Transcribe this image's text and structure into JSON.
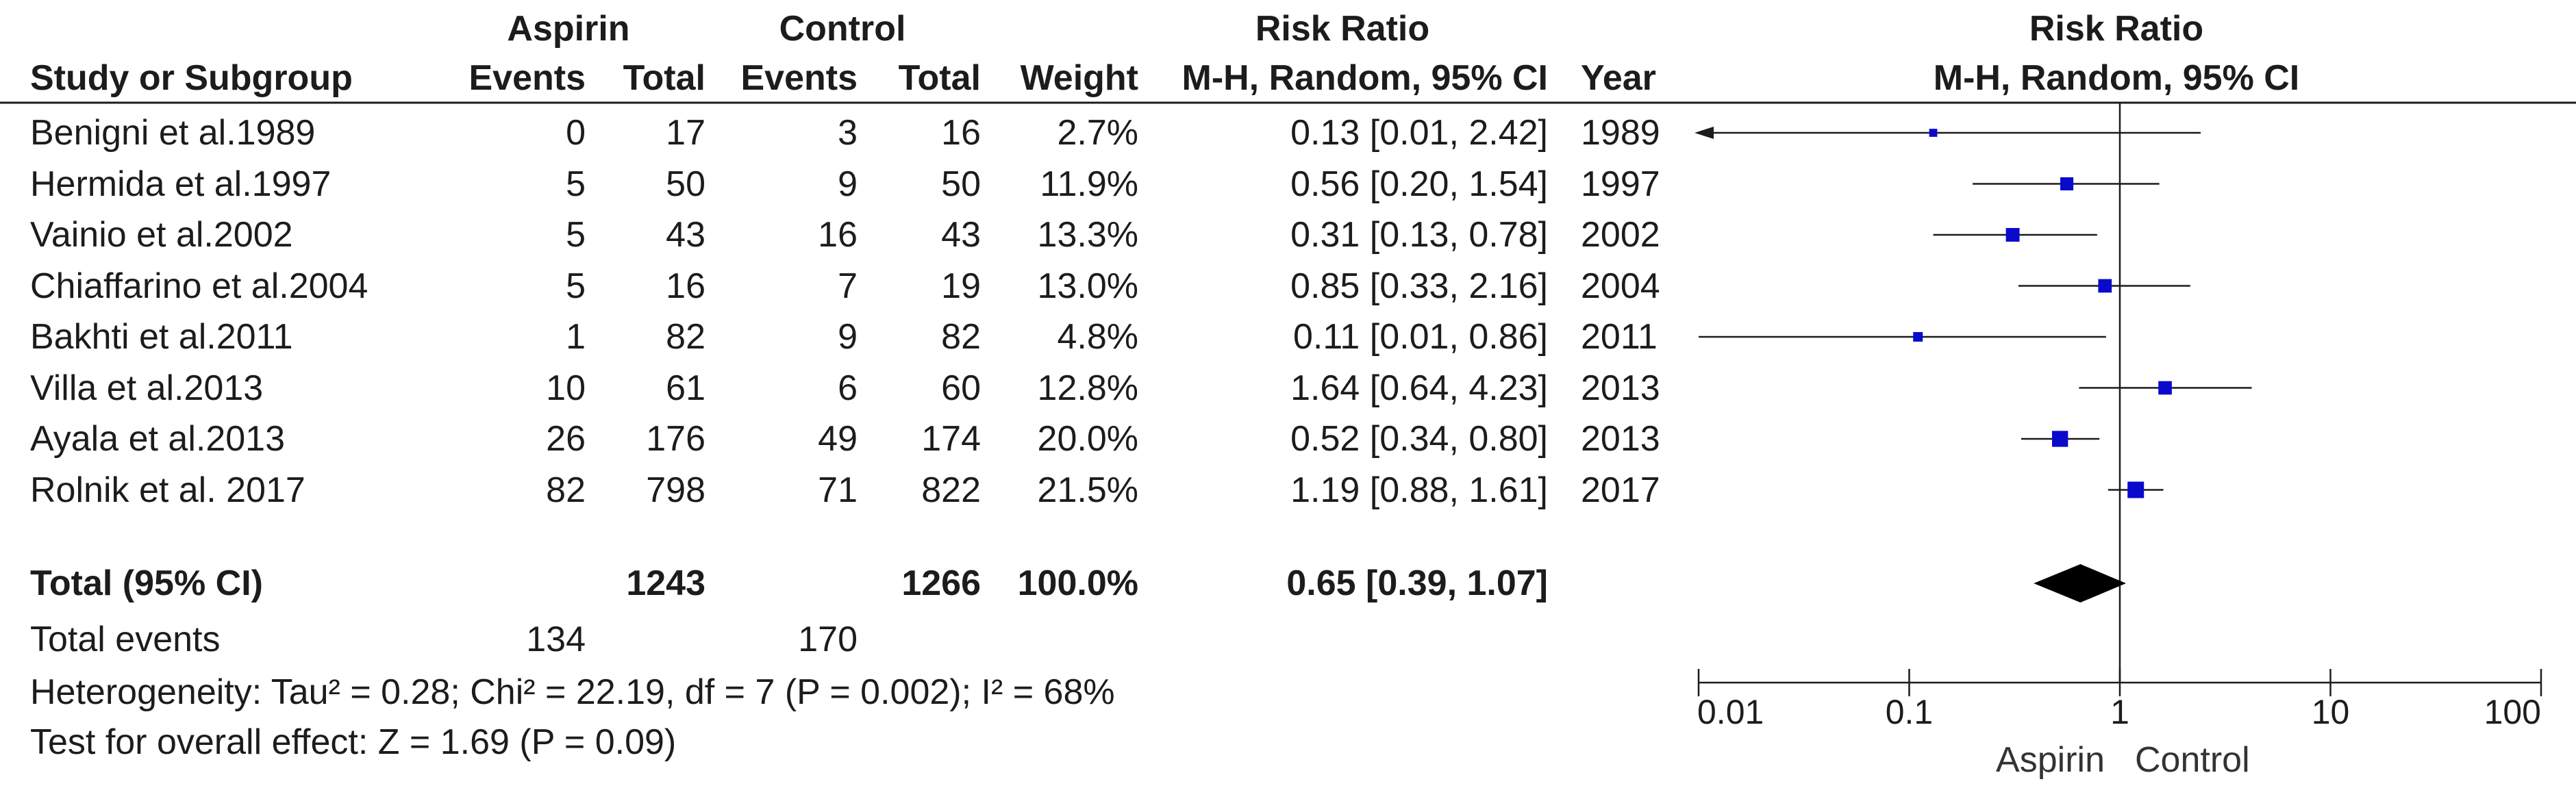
{
  "header": {
    "aspirin_group": "Aspirin",
    "control_group": "Control",
    "risk_ratio_table": "Risk Ratio",
    "risk_ratio_plot": "Risk Ratio",
    "col_study": "Study or Subgroup",
    "col_events_a": "Events",
    "col_total_a": "Total",
    "col_events_c": "Events",
    "col_total_c": "Total",
    "col_weight": "Weight",
    "col_method": "M-H, Random, 95% CI",
    "col_year": "Year",
    "plot_method": "M-H, Random, 95% CI"
  },
  "rows": [
    {
      "study": "Benigni et al.1989",
      "ev_a": "0",
      "tot_a": "17",
      "ev_c": "3",
      "tot_c": "16",
      "weight": "2.7%",
      "rr": "0.13 [0.01, 2.42]",
      "year": "1989"
    },
    {
      "study": "Hermida et al.1997",
      "ev_a": "5",
      "tot_a": "50",
      "ev_c": "9",
      "tot_c": "50",
      "weight": "11.9%",
      "rr": "0.56 [0.20, 1.54]",
      "year": "1997"
    },
    {
      "study": "Vainio et al.2002",
      "ev_a": "5",
      "tot_a": "43",
      "ev_c": "16",
      "tot_c": "43",
      "weight": "13.3%",
      "rr": "0.31 [0.13, 0.78]",
      "year": "2002"
    },
    {
      "study": "Chiaffarino et al.2004",
      "ev_a": "5",
      "tot_a": "16",
      "ev_c": "7",
      "tot_c": "19",
      "weight": "13.0%",
      "rr": "0.85 [0.33, 2.16]",
      "year": "2004"
    },
    {
      "study": "Bakhti et al.2011",
      "ev_a": "1",
      "tot_a": "82",
      "ev_c": "9",
      "tot_c": "82",
      "weight": "4.8%",
      "rr": "0.11 [0.01, 0.86]",
      "year": "2011"
    },
    {
      "study": "Villa et al.2013",
      "ev_a": "10",
      "tot_a": "61",
      "ev_c": "6",
      "tot_c": "60",
      "weight": "12.8%",
      "rr": "1.64 [0.64, 4.23]",
      "year": "2013"
    },
    {
      "study": "Ayala et al.2013",
      "ev_a": "26",
      "tot_a": "176",
      "ev_c": "49",
      "tot_c": "174",
      "weight": "20.0%",
      "rr": "0.52 [0.34, 0.80]",
      "year": "2013"
    },
    {
      "study": "Rolnik et al. 2017",
      "ev_a": "82",
      "tot_a": "798",
      "ev_c": "71",
      "tot_c": "822",
      "weight": "21.5%",
      "rr": "1.19 [0.88, 1.61]",
      "year": "2017"
    }
  ],
  "total": {
    "label": "Total (95% CI)",
    "tot_a": "1243",
    "tot_c": "1266",
    "weight": "100.0%",
    "rr": "0.65 [0.39, 1.07]"
  },
  "events": {
    "label": "Total events",
    "a": "134",
    "c": "170"
  },
  "heterogeneity": "Heterogeneity: Tau² = 0.28; Chi² = 22.19, df = 7 (P = 0.002); I² = 68%",
  "overall_effect": "Test for overall effect: Z = 1.69 (P = 0.09)",
  "chart_data": {
    "type": "forest",
    "scale": "log",
    "xlim": [
      0.01,
      100
    ],
    "ticks": [
      0.01,
      0.1,
      1,
      10,
      100
    ],
    "tick_labels": [
      "0.01",
      "0.1",
      "1",
      "10",
      "100"
    ],
    "reference_line": 1,
    "favours_left": "Aspirin",
    "favours_right": "Control",
    "marker_color": "#0a0acc",
    "studies": [
      {
        "name": "Benigni et al.1989",
        "rr": 0.13,
        "lo": 0.01,
        "hi": 2.42,
        "weight": 2.7,
        "arrow_left": true
      },
      {
        "name": "Hermida et al.1997",
        "rr": 0.56,
        "lo": 0.2,
        "hi": 1.54,
        "weight": 11.9
      },
      {
        "name": "Vainio et al.2002",
        "rr": 0.31,
        "lo": 0.13,
        "hi": 0.78,
        "weight": 13.3
      },
      {
        "name": "Chiaffarino et al.2004",
        "rr": 0.85,
        "lo": 0.33,
        "hi": 2.16,
        "weight": 13.0
      },
      {
        "name": "Bakhti et al.2011",
        "rr": 0.11,
        "lo": 0.01,
        "hi": 0.86,
        "weight": 4.8
      },
      {
        "name": "Villa et al.2013",
        "rr": 1.64,
        "lo": 0.64,
        "hi": 4.23,
        "weight": 12.8
      },
      {
        "name": "Ayala et al.2013",
        "rr": 0.52,
        "lo": 0.34,
        "hi": 0.8,
        "weight": 20.0
      },
      {
        "name": "Rolnik et al. 2017",
        "rr": 1.19,
        "lo": 0.88,
        "hi": 1.61,
        "weight": 21.5
      }
    ],
    "pooled": {
      "rr": 0.65,
      "lo": 0.39,
      "hi": 1.07
    }
  }
}
